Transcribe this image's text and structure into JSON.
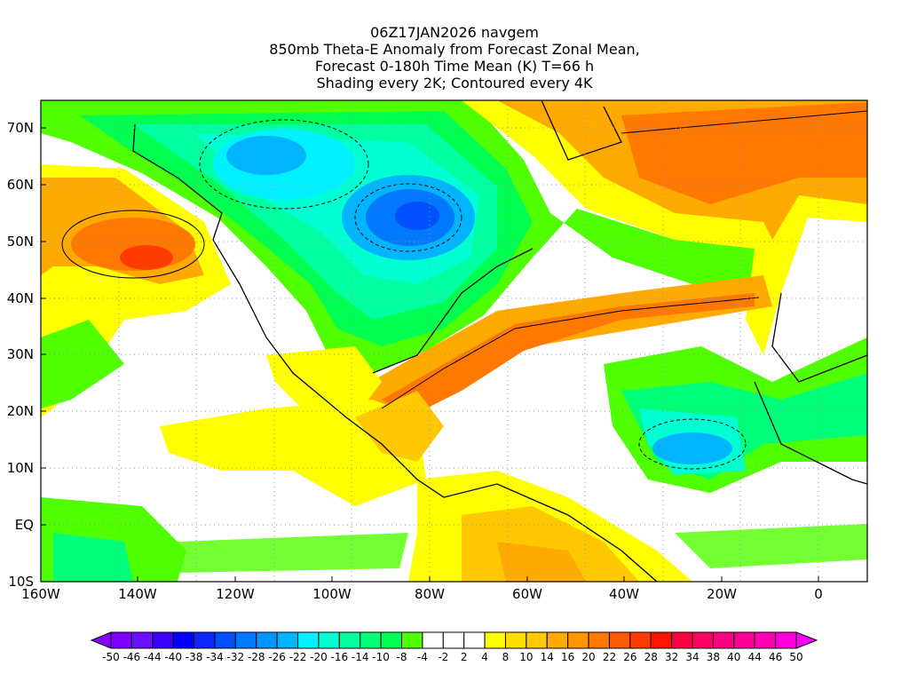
{
  "title": {
    "line1": "06Z17JAN2026 navgem",
    "line2": "850mb Theta-E Anomaly from Forecast Zonal Mean,",
    "line3": "Forecast 0-180h Time Mean (K) T=66 h",
    "line4": "Shading every 2K; Contoured every 4K"
  },
  "x_axis": {
    "labels": [
      "160W",
      "140W",
      "120W",
      "100W",
      "80W",
      "60W",
      "40W",
      "20W",
      "0"
    ]
  },
  "y_axis": {
    "labels": [
      "70N",
      "60N",
      "50N",
      "40N",
      "30N",
      "20N",
      "10N",
      "EQ",
      "10S"
    ]
  },
  "colorbar": {
    "labels": [
      "-50",
      "-46",
      "-44",
      "-40",
      "-38",
      "-34",
      "-32",
      "-28",
      "-26",
      "-22",
      "-20",
      "-16",
      "-14",
      "-10",
      "-8",
      "-4",
      "-2",
      "2",
      "4",
      "8",
      "10",
      "14",
      "16",
      "20",
      "22",
      "26",
      "28",
      "32",
      "34",
      "38",
      "40",
      "44",
      "46",
      "50"
    ],
    "low_color": "#8a00ff",
    "high_color": "#ff00ff",
    "colors": [
      "#7f00ff",
      "#6a10ff",
      "#3c00ff",
      "#0000ff",
      "#0a28ff",
      "#0050ff",
      "#0078ff",
      "#0096ff",
      "#00b4ff",
      "#00f0ff",
      "#00ffd2",
      "#00ffa0",
      "#00ff78",
      "#00ff50",
      "#50ff00",
      "#ffffff",
      "#ffffff",
      "#ffffff",
      "#ffff00",
      "#ffdc00",
      "#ffc800",
      "#ffaa00",
      "#ff9600",
      "#ff7800",
      "#ff5a00",
      "#ff3c00",
      "#ff1400",
      "#ff0040",
      "#ff0064",
      "#ff0080",
      "#ff0096",
      "#ff00b4",
      "#ff00dc"
    ]
  }
}
